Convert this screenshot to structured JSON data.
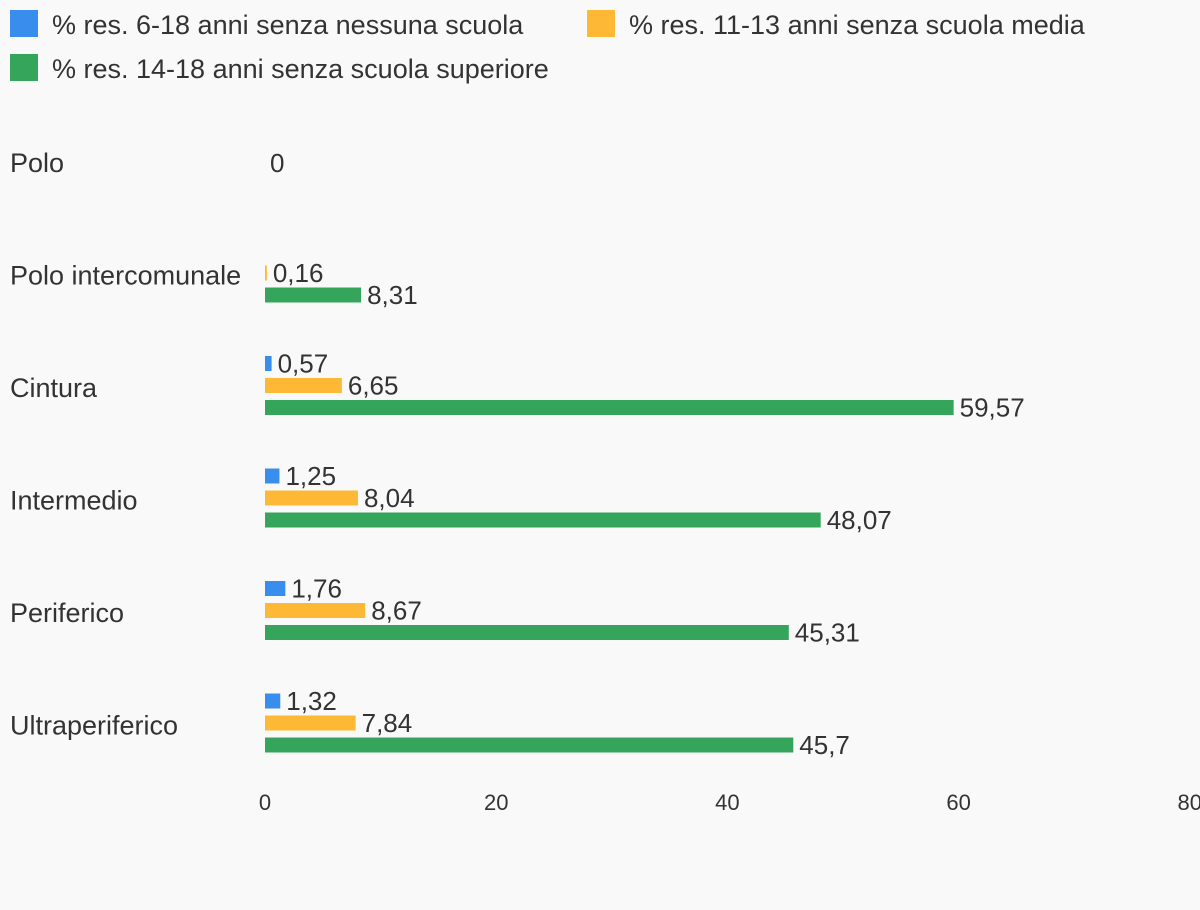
{
  "chart_data": {
    "type": "bar",
    "orientation": "horizontal",
    "categories": [
      "Polo",
      "Polo intercomunale",
      "Cintura",
      "Intermedio",
      "Periferico",
      "Ultraperiferico"
    ],
    "series": [
      {
        "name": "% res. 6-18 anni senza nessuna scuola",
        "color": "#398ded",
        "values": [
          null,
          null,
          0.57,
          1.25,
          1.76,
          1.32
        ],
        "labels": [
          "",
          "",
          "0,57",
          "1,25",
          "1,76",
          "1,32"
        ]
      },
      {
        "name": "% res. 11-13 anni senza scuola media",
        "color": "#fdb935",
        "values": [
          null,
          0.16,
          6.65,
          8.04,
          8.67,
          7.84
        ],
        "labels": [
          "",
          "0,16",
          "6,65",
          "8,04",
          "8,67",
          "7,84"
        ]
      },
      {
        "name": "% res. 14-18 anni senza scuola superiore",
        "color": "#35a55b",
        "values": [
          null,
          8.31,
          59.57,
          48.07,
          45.31,
          45.7
        ],
        "labels": [
          "",
          "8,31",
          "59,57",
          "48,07",
          "45,31",
          "45,7"
        ]
      }
    ],
    "extra_labels": [
      {
        "category": "Polo",
        "text": "0"
      }
    ],
    "xlim": [
      0,
      80
    ],
    "xticks": [
      "0",
      "20",
      "40",
      "60",
      "80"
    ],
    "legend_position": "top",
    "grid": false
  }
}
